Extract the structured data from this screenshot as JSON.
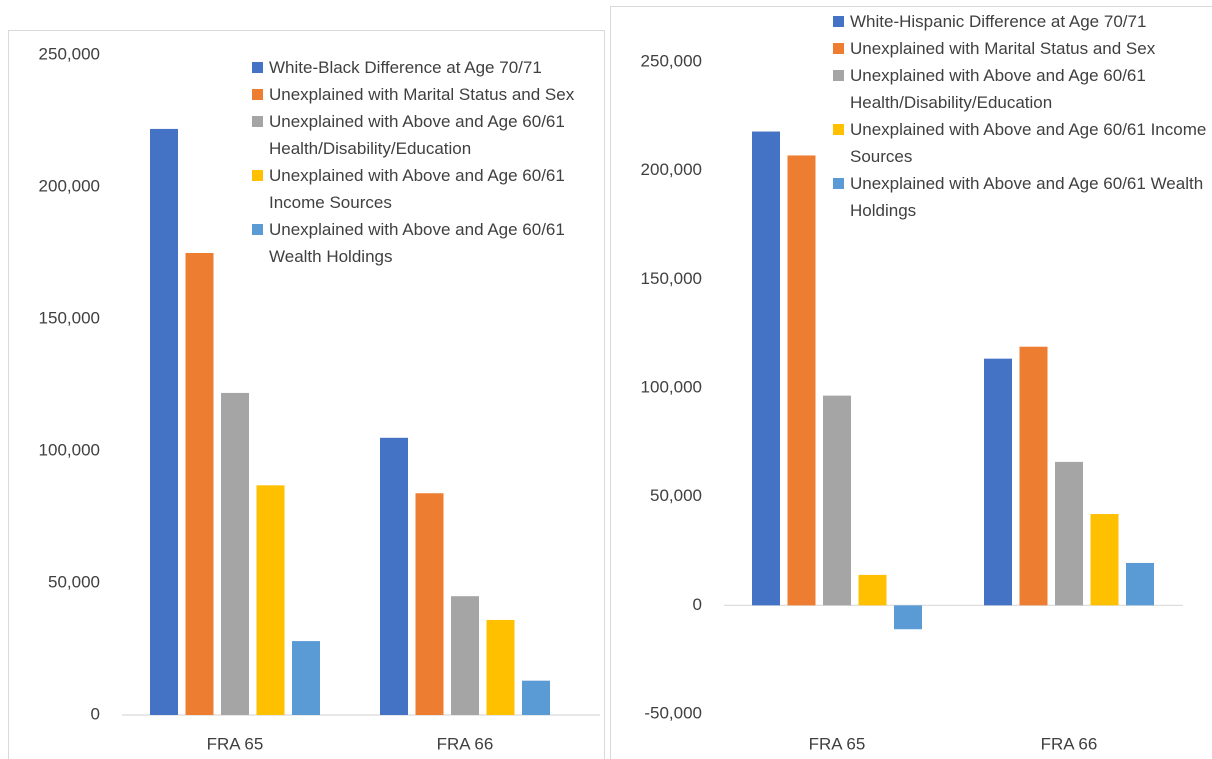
{
  "chart_data": [
    {
      "type": "bar",
      "categories": [
        "FRA 65",
        "FRA 66"
      ],
      "series": [
        {
          "name": "White-Black Difference at Age 70/71",
          "color": "#4472c4",
          "values": [
            222000,
            105000
          ]
        },
        {
          "name": "Unexplained with Marital Status and Sex",
          "color": "#ed7d31",
          "values": [
            175000,
            84000
          ]
        },
        {
          "name": "Unexplained with Above and Age 60/61 Health/Disability/Education",
          "color": "#a5a5a5",
          "values": [
            122000,
            45000
          ]
        },
        {
          "name": "Unexplained with Above and Age 60/61 Income Sources",
          "color": "#ffc000",
          "values": [
            87000,
            36000
          ]
        },
        {
          "name": "Unexplained with Above and Age 60/61 Wealth Holdings",
          "color": "#5b9bd5",
          "values": [
            28000,
            13000
          ]
        }
      ],
      "ylim": [
        0,
        250000
      ],
      "yticks": [
        0,
        {
          "value": 50000,
          "label": "50,000"
        },
        {
          "value": 100000,
          "label": "100,000"
        },
        {
          "value": 150000,
          "label": "150,000"
        },
        {
          "value": 200000,
          "label": "200,000"
        },
        {
          "value": 250000,
          "label": "250,000"
        }
      ],
      "grid": false,
      "legend": "upper right"
    },
    {
      "type": "bar",
      "categories": [
        "FRA 65",
        "FRA 66"
      ],
      "series": [
        {
          "name": "White-Hispanic Difference at Age 70/71",
          "color": "#4472c4",
          "values": [
            218000,
            113500
          ]
        },
        {
          "name": "Unexplained with Marital Status and Sex",
          "color": "#ed7d31",
          "values": [
            207000,
            119000
          ]
        },
        {
          "name": "Unexplained with Above and Age 60/61 Health/Disability/Education",
          "color": "#a5a5a5",
          "values": [
            96500,
            66000
          ]
        },
        {
          "name": "Unexplained with Above and Age 60/61 Income Sources",
          "color": "#ffc000",
          "values": [
            14000,
            42000
          ]
        },
        {
          "name": "Unexplained with Above and Age 60/61 Wealth Holdings",
          "color": "#5b9bd5",
          "values": [
            -11000,
            19500
          ]
        }
      ],
      "ylim": [
        -50000,
        250000
      ],
      "yticks": [
        {
          "value": -50000,
          "label": "-50,000"
        },
        0,
        {
          "value": 50000,
          "label": "50,000"
        },
        {
          "value": 100000,
          "label": "100,000"
        },
        {
          "value": 150000,
          "label": "150,000"
        },
        {
          "value": 200000,
          "label": "200,000"
        },
        {
          "value": 250000,
          "label": "250,000"
        }
      ],
      "grid": false,
      "legend": "upper right"
    }
  ]
}
